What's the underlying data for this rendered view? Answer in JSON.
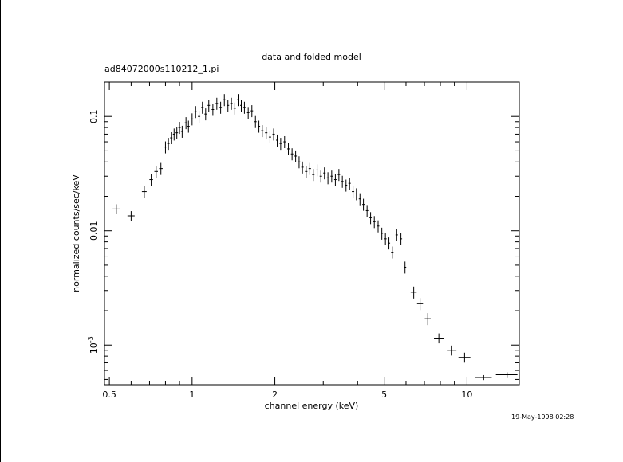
{
  "chart_data": {
    "type": "scatter",
    "title": "data and folded model",
    "subtitle": "ad84072000s110212_1.pi",
    "xlabel": "channel energy (keV)",
    "ylabel": "normalized counts/sec/keV",
    "xscale": "log",
    "yscale": "log",
    "xlim": [
      0.48,
      15.5
    ],
    "ylim": [
      0.00045,
      0.2
    ],
    "x_ticks": [
      {
        "value": 0.5,
        "label": "0.5"
      },
      {
        "value": 1,
        "label": "1"
      },
      {
        "value": 2,
        "label": "2"
      },
      {
        "value": 5,
        "label": "5"
      },
      {
        "value": 10,
        "label": "10"
      }
    ],
    "y_ticks": [
      {
        "value": 0.1,
        "label": "0.1"
      },
      {
        "value": 0.01,
        "label": "0.01"
      },
      {
        "value": 0.001,
        "label": "10",
        "exp": "-3"
      }
    ],
    "series": [
      {
        "points": [
          [
            0.53,
            0.0155,
            0.03,
            0.1
          ],
          [
            0.6,
            0.0135,
            0.03,
            0.1
          ],
          [
            0.67,
            0.022,
            0.02,
            0.12
          ],
          [
            0.71,
            0.028,
            0.015,
            0.12
          ],
          [
            0.74,
            0.033,
            0.015,
            0.12
          ],
          [
            0.77,
            0.035,
            0.015,
            0.12
          ],
          [
            0.8,
            0.054,
            0.01,
            0.12
          ],
          [
            0.82,
            0.058,
            0.01,
            0.12
          ],
          [
            0.84,
            0.065,
            0.01,
            0.12
          ],
          [
            0.86,
            0.07,
            0.01,
            0.12
          ],
          [
            0.88,
            0.072,
            0.01,
            0.12
          ],
          [
            0.9,
            0.08,
            0.01,
            0.12
          ],
          [
            0.92,
            0.074,
            0.01,
            0.12
          ],
          [
            0.95,
            0.088,
            0.01,
            0.12
          ],
          [
            0.97,
            0.082,
            0.01,
            0.12
          ],
          [
            1.0,
            0.095,
            0.01,
            0.12
          ],
          [
            1.03,
            0.11,
            0.01,
            0.12
          ],
          [
            1.06,
            0.1,
            0.01,
            0.12
          ],
          [
            1.09,
            0.12,
            0.01,
            0.12
          ],
          [
            1.12,
            0.105,
            0.01,
            0.12
          ],
          [
            1.15,
            0.125,
            0.01,
            0.12
          ],
          [
            1.19,
            0.115,
            0.01,
            0.12
          ],
          [
            1.23,
            0.13,
            0.01,
            0.12
          ],
          [
            1.27,
            0.12,
            0.01,
            0.12
          ],
          [
            1.31,
            0.14,
            0.01,
            0.12
          ],
          [
            1.35,
            0.125,
            0.01,
            0.12
          ],
          [
            1.39,
            0.13,
            0.01,
            0.12
          ],
          [
            1.43,
            0.118,
            0.01,
            0.12
          ],
          [
            1.47,
            0.14,
            0.01,
            0.12
          ],
          [
            1.51,
            0.125,
            0.01,
            0.12
          ],
          [
            1.55,
            0.12,
            0.01,
            0.12
          ],
          [
            1.6,
            0.108,
            0.01,
            0.12
          ],
          [
            1.65,
            0.112,
            0.01,
            0.12
          ],
          [
            1.7,
            0.09,
            0.01,
            0.12
          ],
          [
            1.75,
            0.082,
            0.01,
            0.12
          ],
          [
            1.8,
            0.075,
            0.01,
            0.12
          ],
          [
            1.86,
            0.072,
            0.01,
            0.12
          ],
          [
            1.92,
            0.066,
            0.01,
            0.12
          ],
          [
            1.98,
            0.07,
            0.01,
            0.12
          ],
          [
            2.04,
            0.062,
            0.01,
            0.12
          ],
          [
            2.1,
            0.058,
            0.01,
            0.12
          ],
          [
            2.17,
            0.06,
            0.01,
            0.12
          ],
          [
            2.24,
            0.052,
            0.01,
            0.12
          ],
          [
            2.31,
            0.047,
            0.01,
            0.12
          ],
          [
            2.38,
            0.045,
            0.01,
            0.12
          ],
          [
            2.45,
            0.04,
            0.01,
            0.12
          ],
          [
            2.52,
            0.036,
            0.01,
            0.12
          ],
          [
            2.6,
            0.033,
            0.01,
            0.12
          ],
          [
            2.68,
            0.035,
            0.01,
            0.12
          ],
          [
            2.76,
            0.031,
            0.01,
            0.12
          ],
          [
            2.85,
            0.034,
            0.01,
            0.12
          ],
          [
            2.94,
            0.03,
            0.01,
            0.12
          ],
          [
            3.03,
            0.032,
            0.01,
            0.12
          ],
          [
            3.12,
            0.029,
            0.01,
            0.12
          ],
          [
            3.22,
            0.03,
            0.01,
            0.12
          ],
          [
            3.32,
            0.028,
            0.01,
            0.12
          ],
          [
            3.42,
            0.031,
            0.01,
            0.12
          ],
          [
            3.52,
            0.027,
            0.01,
            0.12
          ],
          [
            3.63,
            0.025,
            0.01,
            0.12
          ],
          [
            3.74,
            0.026,
            0.01,
            0.12
          ],
          [
            3.85,
            0.022,
            0.01,
            0.12
          ],
          [
            3.96,
            0.021,
            0.01,
            0.12
          ],
          [
            4.08,
            0.019,
            0.01,
            0.12
          ],
          [
            4.2,
            0.017,
            0.01,
            0.12
          ],
          [
            4.33,
            0.015,
            0.01,
            0.12
          ],
          [
            4.46,
            0.013,
            0.01,
            0.12
          ],
          [
            4.6,
            0.012,
            0.01,
            0.12
          ],
          [
            4.75,
            0.011,
            0.01,
            0.12
          ],
          [
            4.9,
            0.0095,
            0.01,
            0.12
          ],
          [
            5.05,
            0.0085,
            0.01,
            0.12
          ],
          [
            5.2,
            0.0078,
            0.01,
            0.12
          ],
          [
            5.35,
            0.0065,
            0.01,
            0.12
          ],
          [
            5.55,
            0.0092,
            0.01,
            0.12
          ],
          [
            5.75,
            0.0085,
            0.01,
            0.12
          ],
          [
            5.95,
            0.0048,
            0.01,
            0.12
          ],
          [
            6.4,
            0.0029,
            0.025,
            0.12
          ],
          [
            6.75,
            0.0023,
            0.025,
            0.12
          ],
          [
            7.2,
            0.0017,
            0.025,
            0.12
          ],
          [
            7.9,
            0.00115,
            0.04,
            0.1
          ],
          [
            8.8,
            0.0009,
            0.04,
            0.1
          ],
          [
            9.8,
            0.00078,
            0.05,
            0.1
          ],
          [
            11.5,
            0.00052,
            0.07,
            0.05
          ],
          [
            14.0,
            0.00055,
            0.09,
            0.05
          ]
        ]
      }
    ]
  },
  "timestamp": "19-May-1998 02:28"
}
